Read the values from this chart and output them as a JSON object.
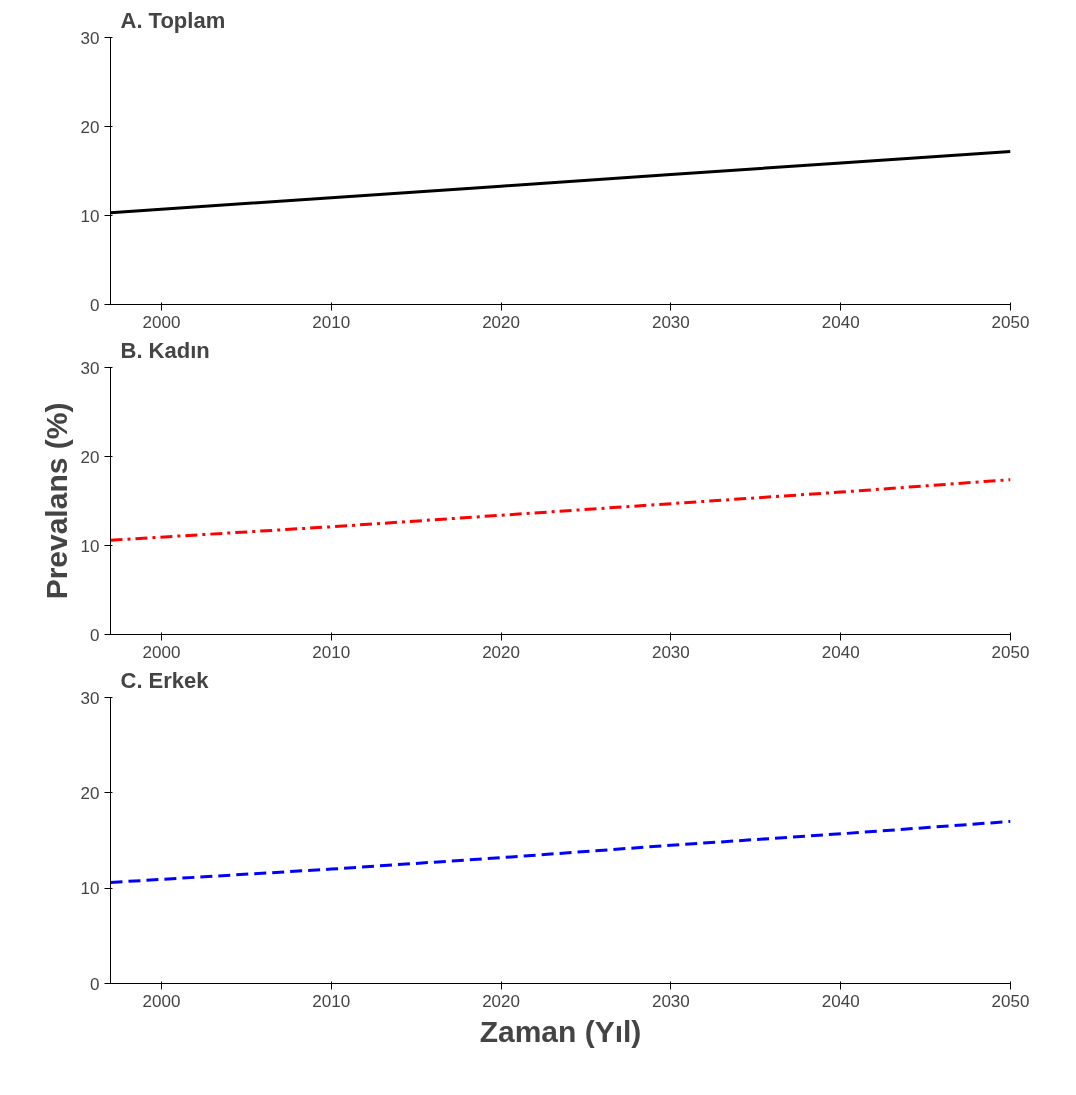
{
  "chart_data": [
    {
      "type": "line",
      "title": "A. Toplam",
      "x": [
        1997,
        2010,
        2020,
        2030,
        2040,
        2050
      ],
      "series": [
        {
          "color": "#000000",
          "line_style": "solid",
          "values": [
            10.3,
            12.0,
            13.3,
            14.6,
            15.9,
            17.2
          ]
        }
      ],
      "xlim": [
        1997,
        2050
      ],
      "ylim": [
        0,
        30
      ],
      "xticks": [
        2000,
        2010,
        2020,
        2030,
        2040,
        2050
      ],
      "yticks": [
        0,
        10,
        20,
        30
      ]
    },
    {
      "type": "line",
      "title": "B. Kadın",
      "ylabel": "Prevalans (%)",
      "x": [
        1997,
        2010,
        2020,
        2030,
        2040,
        2050
      ],
      "series": [
        {
          "color": "#ff0000",
          "line_style": "dashdot",
          "values": [
            10.6,
            12.1,
            13.4,
            14.7,
            16.0,
            17.4
          ]
        }
      ],
      "xlim": [
        1997,
        2050
      ],
      "ylim": [
        0,
        30
      ],
      "xticks": [
        2000,
        2010,
        2020,
        2030,
        2040,
        2050
      ],
      "yticks": [
        0,
        10,
        20,
        30
      ]
    },
    {
      "type": "line",
      "title": "C. Erkek",
      "xlabel": "Zaman (Yıl)",
      "x": [
        1997,
        2010,
        2020,
        2030,
        2040,
        2050
      ],
      "series": [
        {
          "color": "#0000ff",
          "line_style": "dashed",
          "values": [
            10.6,
            12.0,
            13.2,
            14.5,
            15.7,
            17.0
          ]
        }
      ],
      "xlim": [
        1997,
        2050
      ],
      "ylim": [
        0,
        30
      ],
      "xticks": [
        2000,
        2010,
        2020,
        2030,
        2040,
        2050
      ],
      "yticks": [
        0,
        10,
        20,
        30
      ]
    }
  ]
}
